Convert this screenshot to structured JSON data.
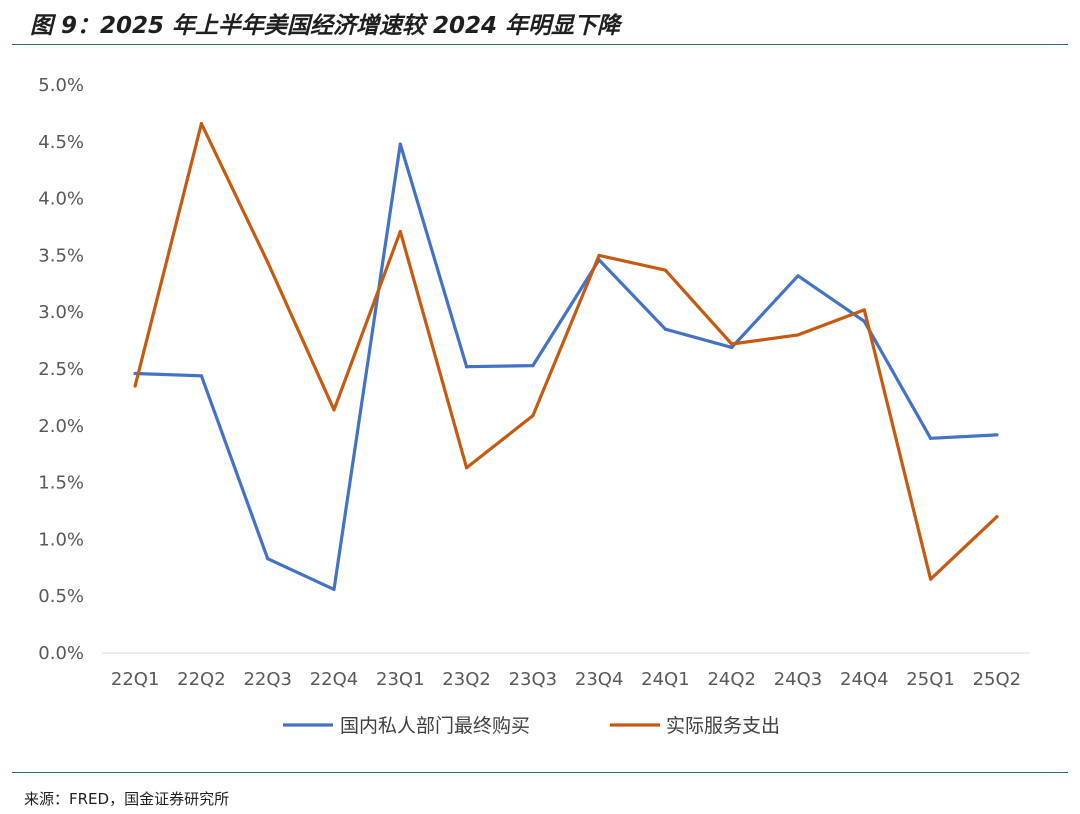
{
  "header": {
    "title": "图 9：2025 年上半年美国经济增速较 2024 年明显下降"
  },
  "footer": {
    "source": "来源：FRED，国金证券研究所"
  },
  "colors": {
    "series1": "#4472C4",
    "series2": "#C55A11",
    "rule": "#2f6f73",
    "axis_text": "#595959"
  },
  "chart_data": {
    "type": "line",
    "categories": [
      "22Q1",
      "22Q2",
      "22Q3",
      "22Q4",
      "23Q1",
      "23Q2",
      "23Q3",
      "23Q4",
      "24Q1",
      "24Q2",
      "24Q3",
      "24Q4",
      "25Q1",
      "25Q2"
    ],
    "y_ticks": [
      "0.0%",
      "0.5%",
      "1.0%",
      "1.5%",
      "2.0%",
      "2.5%",
      "3.0%",
      "3.5%",
      "4.0%",
      "4.5%",
      "5.0%"
    ],
    "ylim": [
      0,
      5.0
    ],
    "y_unit": "%",
    "grid": false,
    "legend_position": "bottom",
    "series": [
      {
        "name": "国内私人部门最终购买",
        "color": "#4472C4",
        "values": [
          2.46,
          2.44,
          0.83,
          0.56,
          4.48,
          2.52,
          2.53,
          3.46,
          2.85,
          2.69,
          3.32,
          2.92,
          1.89,
          1.92
        ]
      },
      {
        "name": "实际服务支出",
        "color": "#C55A11",
        "values": [
          2.35,
          4.66,
          3.44,
          2.14,
          3.71,
          1.63,
          2.09,
          3.5,
          3.37,
          2.72,
          2.8,
          3.02,
          0.65,
          1.2
        ]
      }
    ]
  }
}
